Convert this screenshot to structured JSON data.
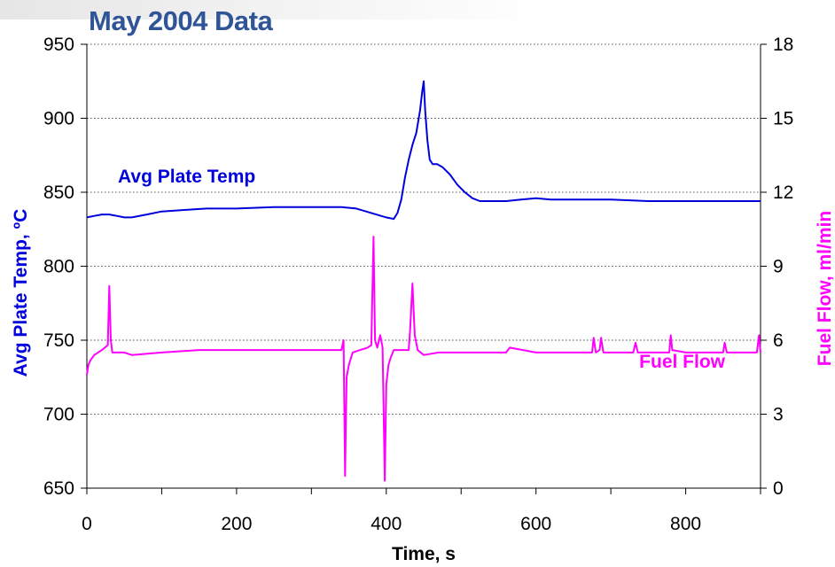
{
  "chart_data": {
    "type": "line",
    "title": "May 2004 Data",
    "xlabel": "Time, s",
    "ylabel": "Avg Plate Temp, ºC",
    "y2label": "Fuel Flow, ml/min",
    "xlim": [
      0,
      900
    ],
    "ylim": [
      650,
      950
    ],
    "y2lim": [
      0,
      18
    ],
    "xticks": [
      "0",
      "200",
      "400",
      "600",
      "800"
    ],
    "yticks": [
      "650",
      "700",
      "750",
      "800",
      "850",
      "900",
      "950"
    ],
    "y2ticks": [
      "0",
      "3",
      "6",
      "9",
      "12",
      "15",
      "18"
    ],
    "grid": "horizontal dotted",
    "colors": {
      "temp": "#0000dd",
      "fuel": "#ff00ff",
      "title": "#2f5597"
    },
    "annotations": [
      {
        "text": "Avg Plate Temp",
        "color": "#0000dd"
      },
      {
        "text": "Fuel Flow",
        "color": "#ff00ff"
      }
    ],
    "series": [
      {
        "name": "Avg Plate Temp",
        "axis": "left",
        "x": [
          0,
          10,
          20,
          30,
          40,
          50,
          60,
          80,
          100,
          130,
          160,
          200,
          250,
          300,
          340,
          360,
          380,
          400,
          410,
          415,
          420,
          425,
          430,
          435,
          440,
          445,
          448,
          450,
          452,
          455,
          458,
          462,
          468,
          475,
          485,
          495,
          505,
          515,
          525,
          540,
          560,
          580,
          600,
          620,
          650,
          700,
          750,
          800,
          850,
          900
        ],
        "y": [
          833,
          834,
          835,
          835,
          834,
          833,
          833,
          835,
          837,
          838,
          839,
          839,
          840,
          840,
          840,
          839,
          836,
          833,
          832,
          836,
          845,
          860,
          872,
          882,
          890,
          905,
          918,
          925,
          905,
          885,
          872,
          869,
          869,
          867,
          862,
          855,
          850,
          846,
          844,
          844,
          844,
          845,
          846,
          845,
          845,
          845,
          844,
          844,
          844,
          844
        ]
      },
      {
        "name": "Fuel Flow",
        "axis": "right",
        "x": [
          0,
          2,
          5,
          10,
          20,
          28,
          30,
          32,
          34,
          36,
          40,
          50,
          60,
          100,
          150,
          200,
          250,
          300,
          340,
          343,
          345,
          347,
          350,
          355,
          365,
          375,
          380,
          383,
          385,
          388,
          392,
          395,
          398,
          400,
          403,
          406,
          410,
          420,
          430,
          432,
          435,
          438,
          442,
          450,
          470,
          500,
          550,
          560,
          565,
          600,
          650,
          675,
          677,
          680,
          685,
          687,
          690,
          730,
          733,
          736,
          760,
          778,
          780,
          782,
          800,
          850,
          852,
          855,
          870,
          895,
          898,
          900
        ],
        "y": [
          4.6,
          5.0,
          5.2,
          5.4,
          5.6,
          5.8,
          8.2,
          6.0,
          5.5,
          5.5,
          5.5,
          5.5,
          5.4,
          5.5,
          5.6,
          5.6,
          5.6,
          5.6,
          5.6,
          6.0,
          0.5,
          4.5,
          5.0,
          5.5,
          5.6,
          5.7,
          5.8,
          10.2,
          6.0,
          5.7,
          6.2,
          5.7,
          0.3,
          4.2,
          5.0,
          5.3,
          5.6,
          5.6,
          5.6,
          6.5,
          8.3,
          6.2,
          5.6,
          5.4,
          5.5,
          5.5,
          5.5,
          5.5,
          5.7,
          5.5,
          5.5,
          5.5,
          6.1,
          5.5,
          5.6,
          6.1,
          5.5,
          5.5,
          5.9,
          5.5,
          5.5,
          5.5,
          6.2,
          5.6,
          5.5,
          5.5,
          5.9,
          5.5,
          5.5,
          5.5,
          6.2,
          5.5
        ]
      }
    ]
  }
}
